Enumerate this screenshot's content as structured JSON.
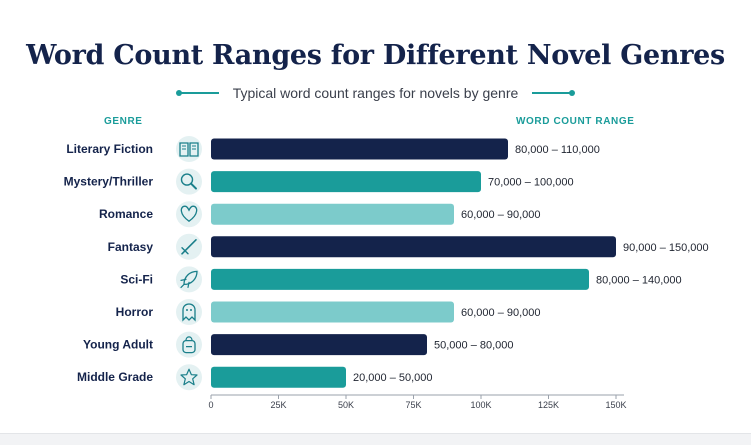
{
  "colors": {
    "navy": "#14234b",
    "teal": "#1a9c9a",
    "light_teal": "#7ccbcb",
    "icon_bg": "#e4f1f2"
  },
  "chart_data": {
    "type": "bar",
    "orientation": "horizontal",
    "title": "Word Count Ranges for Different Novel Genres",
    "subtitle": "Typical word count ranges for novels by genre",
    "y_header": "GENRE",
    "value_header": "WORD COUNT RANGE",
    "xlim": [
      0,
      150000
    ],
    "xticks": [
      {
        "value": 0,
        "label": "0"
      },
      {
        "value": 25000,
        "label": "25K"
      },
      {
        "value": 50000,
        "label": "50K"
      },
      {
        "value": 75000,
        "label": "75K"
      },
      {
        "value": 100000,
        "label": "100K"
      },
      {
        "value": 125000,
        "label": "125K"
      },
      {
        "value": 150000,
        "label": "150K"
      }
    ],
    "bars": [
      {
        "genre": "Literary Fiction",
        "icon": "book-icon",
        "min": 80000,
        "max": 110000,
        "label": "80,000 – 110,000",
        "color": "navy"
      },
      {
        "genre": "Mystery/Thriller",
        "icon": "magnifier-icon",
        "min": 70000,
        "max": 100000,
        "label": "70,000 – 100,000",
        "color": "teal"
      },
      {
        "genre": "Romance",
        "icon": "heart-icon",
        "min": 60000,
        "max": 90000,
        "label": "60,000 – 90,000",
        "color": "light_teal"
      },
      {
        "genre": "Fantasy",
        "icon": "sword-icon",
        "min": 90000,
        "max": 150000,
        "label": "90,000 – 150,000",
        "color": "navy"
      },
      {
        "genre": "Sci-Fi",
        "icon": "rocket-icon",
        "min": 80000,
        "max": 140000,
        "label": "80,000 – 140,000",
        "color": "teal"
      },
      {
        "genre": "Horror",
        "icon": "ghost-icon",
        "min": 60000,
        "max": 90000,
        "label": "60,000 – 90,000",
        "color": "light_teal"
      },
      {
        "genre": "Young Adult",
        "icon": "backpack-icon",
        "min": 50000,
        "max": 80000,
        "label": "50,000 – 80,000",
        "color": "navy"
      },
      {
        "genre": "Middle Grade",
        "icon": "star-icon",
        "min": 20000,
        "max": 50000,
        "label": "20,000 – 50,000",
        "color": "teal"
      }
    ]
  }
}
